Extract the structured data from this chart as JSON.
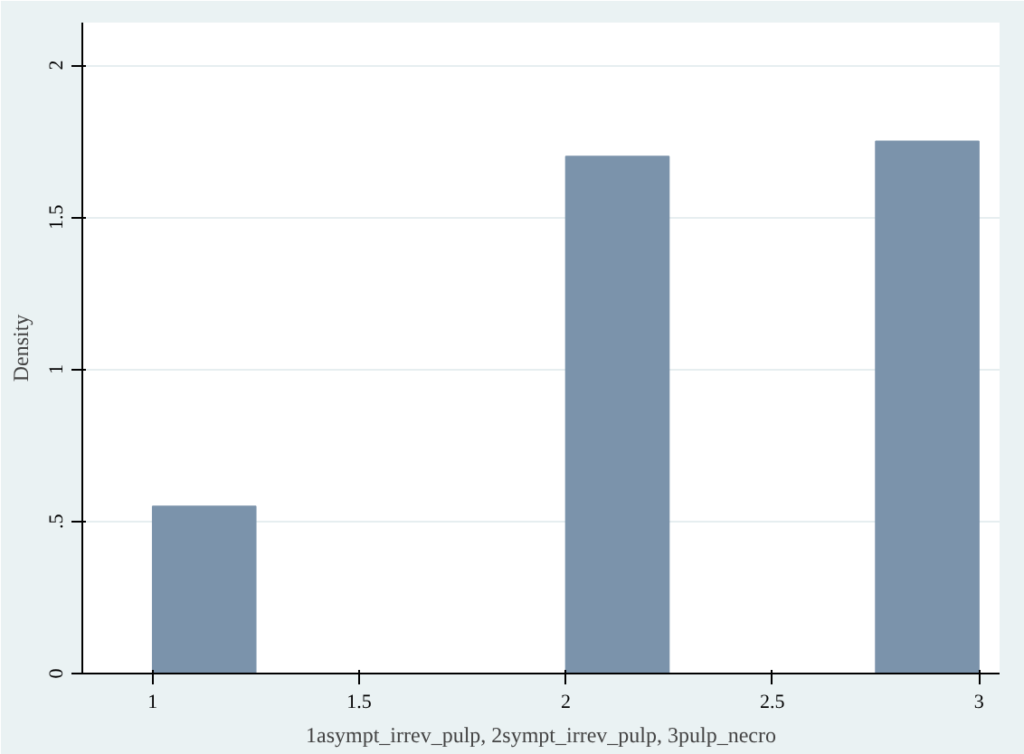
{
  "chart_data": {
    "type": "histogram",
    "xlabel": "1asympt_irrev_pulp, 2sympt_irrev_pulp, 3pulp_necro",
    "ylabel": "Density",
    "bins": [
      1,
      1.25,
      1.5,
      1.75,
      2,
      2.25,
      2.5,
      2.75,
      3
    ],
    "values": [
      0.55,
      0,
      0,
      0,
      1.7,
      0,
      0,
      1.75
    ],
    "color": "#7b93ab",
    "xlim": [
      0.83,
      3.05
    ],
    "ylim": [
      0,
      2.14
    ],
    "xticks": [
      1,
      1.5,
      2,
      2.5,
      3
    ],
    "yticks": [
      0,
      {
        "value": 0.5,
        "label": ".5"
      },
      1,
      1.5,
      2
    ],
    "grid": "y"
  }
}
